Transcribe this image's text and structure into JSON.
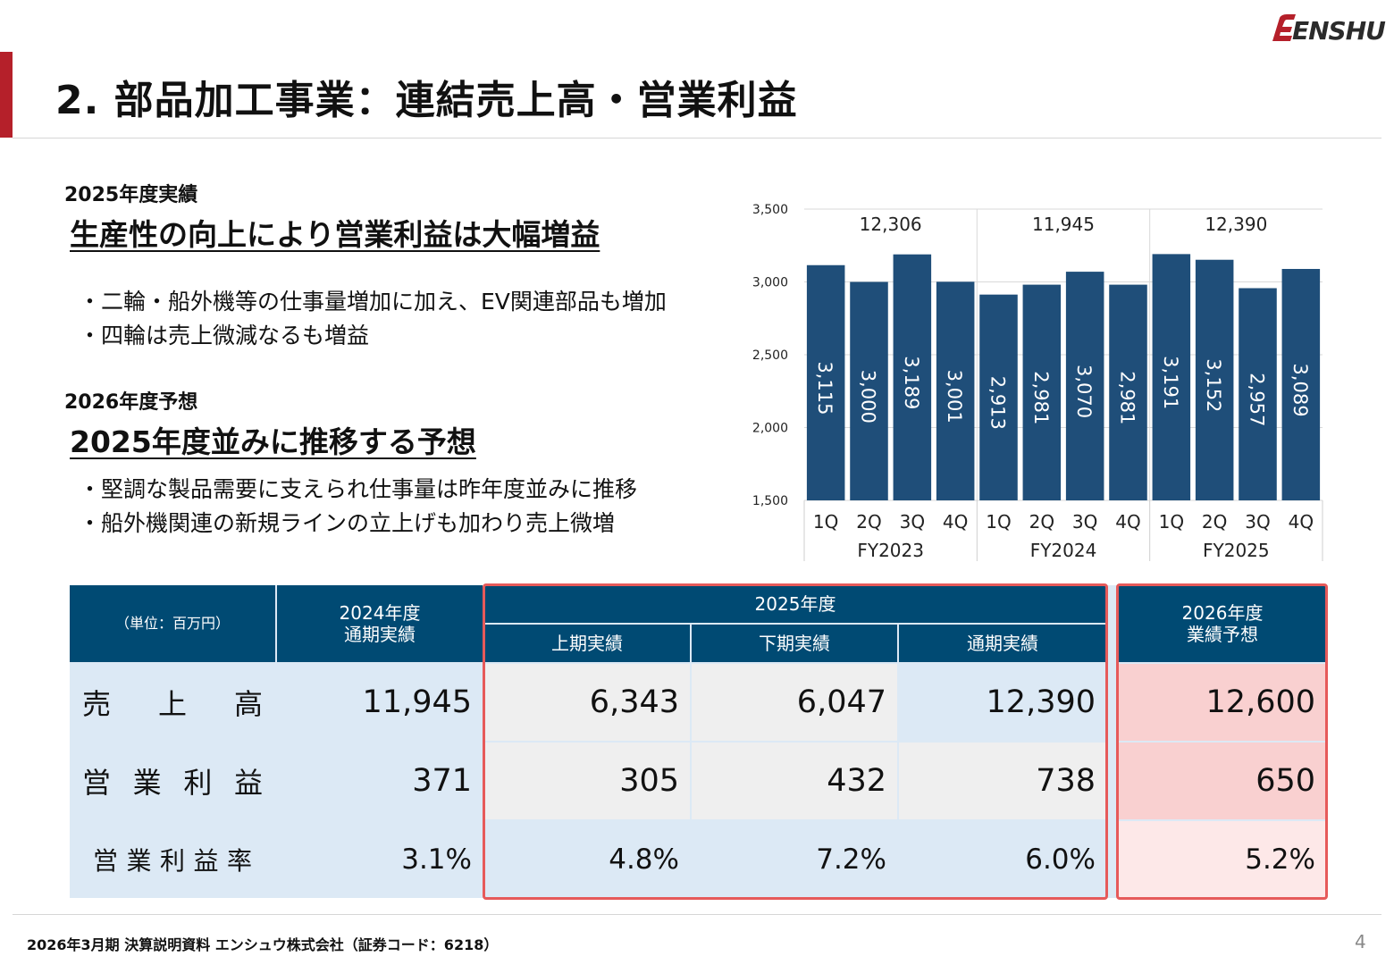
{
  "header": {
    "title": "2. 部品加工事業：連結売上高・営業利益",
    "logo_text": "ENSHU"
  },
  "results": {
    "label": "2025年度実績",
    "headline": "生産性の向上により営業利益は大幅増益",
    "bullets": [
      "・二輪・船外機等の仕事量増加に加え、EV関連部品も増加",
      "・四輪は売上微減なるも増益"
    ]
  },
  "forecast": {
    "label": "2026年度予想",
    "headline": "2025年度並みに推移する予想",
    "bullets": [
      "・堅調な製品需要に支えられ仕事量は昨年度並みに推移",
      "・船外機関連の新規ラインの立上げも加わり売上微増"
    ]
  },
  "chart_data": {
    "type": "bar",
    "categories": [
      "1Q",
      "2Q",
      "3Q",
      "4Q",
      "1Q",
      "2Q",
      "3Q",
      "4Q",
      "1Q",
      "2Q",
      "3Q",
      "4Q"
    ],
    "groups": [
      {
        "name": "FY2023",
        "total": "12,306"
      },
      {
        "name": "FY2024",
        "total": "11,945"
      },
      {
        "name": "FY2025",
        "total": "12,390"
      }
    ],
    "values": [
      3115,
      3000,
      3189,
      3001,
      2913,
      2981,
      3070,
      2981,
      3191,
      3152,
      2957,
      3089
    ],
    "value_labels": [
      "3,115",
      "3,000",
      "3,189",
      "3,001",
      "2,913",
      "2,981",
      "3,070",
      "2,981",
      "3,191",
      "3,152",
      "2,957",
      "3,089"
    ],
    "ylim": [
      1500,
      3500
    ],
    "yticks": [
      1500,
      2000,
      2500,
      3000,
      3500
    ],
    "ytick_labels": [
      "1,500",
      "2,000",
      "2,500",
      "3,000",
      "3,500"
    ],
    "bar_color": "#1f4e79",
    "grid": true
  },
  "table": {
    "unit": "（単位：百万円）",
    "col_2024": [
      "2024年度",
      "通期実績"
    ],
    "fy2025": "2025年度",
    "col_h1": "上期実績",
    "col_h2": "下期実績",
    "col_full": "通期実績",
    "col_2026": [
      "2026年度",
      "業績予想"
    ],
    "rows": [
      {
        "label": [
          "売",
          "上",
          "高"
        ],
        "v2024": "11,945",
        "h1": "6,343",
        "h2": "6,047",
        "full": "12,390",
        "f2026": "12,600"
      },
      {
        "label": [
          "営",
          "業",
          "利",
          "益"
        ],
        "v2024": "371",
        "h1": "305",
        "h2": "432",
        "full": "738",
        "f2026": "650"
      },
      {
        "label": [
          "営",
          "業",
          "利",
          "益",
          "率"
        ],
        "v2024": "3.1%",
        "h1": "4.8%",
        "h2": "7.2%",
        "full": "6.0%",
        "f2026": "5.2%"
      }
    ],
    "colors": {
      "header": "#004a73",
      "light_blue": "#dce9f5",
      "gray": "#efefef",
      "pink": "#f9d0d0",
      "pale_pink": "#fde8e8",
      "highlight": "#e65a5a"
    }
  },
  "footer": {
    "text": "2026年3月期 決算説明資料 エンシュウ株式会社（証券コード：6218）",
    "page": "4"
  }
}
